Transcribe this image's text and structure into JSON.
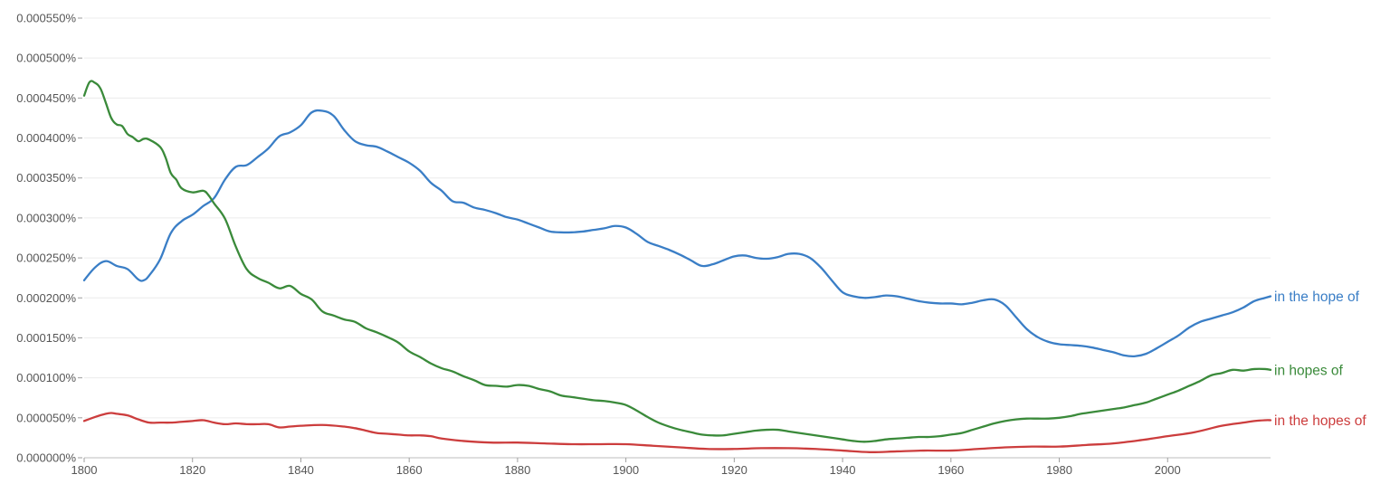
{
  "chart_data": {
    "type": "line",
    "title": "",
    "xlabel": "",
    "ylabel": "",
    "xlim": [
      1800,
      2019
    ],
    "ylim": [
      0,
      0.00055
    ],
    "x_ticks": [
      1800,
      1820,
      1840,
      1860,
      1880,
      1900,
      1920,
      1940,
      1960,
      1980,
      2000
    ],
    "x_tick_labels": [
      "1800",
      "1820",
      "1840",
      "1860",
      "1880",
      "1900",
      "1920",
      "1940",
      "1960",
      "1980",
      "2000"
    ],
    "y_ticks": [
      0,
      5e-05,
      0.0001,
      0.00015,
      0.0002,
      0.00025,
      0.0003,
      0.00035,
      0.0004,
      0.00045,
      0.0005,
      0.00055
    ],
    "y_tick_labels": [
      "0.000000%",
      "0.000050%",
      "0.000100%",
      "0.000150%",
      "0.000200%",
      "0.000250%",
      "0.000300%",
      "0.000350%",
      "0.000400%",
      "0.000450%",
      "0.000500%",
      "0.000550%"
    ],
    "grid": true,
    "legend": "right-end-labels",
    "series": [
      {
        "name": "in the hope of",
        "color": "#3a7ec6",
        "x": [
          1800,
          1802,
          1804,
          1806,
          1808,
          1810,
          1811,
          1812,
          1814,
          1816,
          1818,
          1820,
          1822,
          1824,
          1826,
          1828,
          1830,
          1832,
          1834,
          1836,
          1838,
          1840,
          1842,
          1844,
          1846,
          1848,
          1850,
          1852,
          1854,
          1856,
          1858,
          1860,
          1862,
          1864,
          1866,
          1868,
          1870,
          1872,
          1874,
          1876,
          1878,
          1880,
          1882,
          1884,
          1886,
          1888,
          1890,
          1892,
          1894,
          1896,
          1898,
          1900,
          1902,
          1904,
          1906,
          1908,
          1910,
          1912,
          1914,
          1916,
          1918,
          1920,
          1922,
          1924,
          1926,
          1928,
          1930,
          1932,
          1934,
          1936,
          1938,
          1940,
          1942,
          1944,
          1946,
          1948,
          1950,
          1952,
          1954,
          1956,
          1958,
          1960,
          1962,
          1964,
          1966,
          1968,
          1970,
          1972,
          1974,
          1976,
          1978,
          1980,
          1982,
          1984,
          1986,
          1988,
          1990,
          1992,
          1994,
          1996,
          1998,
          2000,
          2002,
          2004,
          2006,
          2008,
          2010,
          2012,
          2014,
          2016,
          2018,
          2019
        ],
        "y": [
          0.000222,
          0.000238,
          0.000246,
          0.00024,
          0.000236,
          0.000223,
          0.000222,
          0.000228,
          0.000248,
          0.000281,
          0.000296,
          0.000304,
          0.000315,
          0.000325,
          0.000348,
          0.000364,
          0.000366,
          0.000376,
          0.000387,
          0.000402,
          0.000407,
          0.000416,
          0.000432,
          0.000434,
          0.000428,
          0.00041,
          0.000396,
          0.000391,
          0.000389,
          0.000383,
          0.000376,
          0.000369,
          0.000359,
          0.000344,
          0.000334,
          0.000321,
          0.000319,
          0.000313,
          0.00031,
          0.000306,
          0.000301,
          0.000298,
          0.000293,
          0.000288,
          0.000283,
          0.000282,
          0.000282,
          0.000283,
          0.000285,
          0.000287,
          0.00029,
          0.000288,
          0.00028,
          0.00027,
          0.000265,
          0.00026,
          0.000254,
          0.000247,
          0.00024,
          0.000242,
          0.000247,
          0.000252,
          0.000253,
          0.00025,
          0.000249,
          0.000251,
          0.000255,
          0.000255,
          0.00025,
          0.000238,
          0.000222,
          0.000207,
          0.000202,
          0.0002,
          0.000201,
          0.000203,
          0.000202,
          0.000199,
          0.000196,
          0.000194,
          0.000193,
          0.000193,
          0.000192,
          0.000194,
          0.000197,
          0.000198,
          0.000191,
          0.000176,
          0.000161,
          0.000151,
          0.000145,
          0.000142,
          0.000141,
          0.00014,
          0.000138,
          0.000135,
          0.000132,
          0.000128,
          0.000127,
          0.00013,
          0.000137,
          0.000145,
          0.000153,
          0.000163,
          0.00017,
          0.000174,
          0.000178,
          0.000182,
          0.000188,
          0.000196,
          0.0002,
          0.000202
        ]
      },
      {
        "name": "in hopes of",
        "color": "#3a8a3a",
        "x": [
          1800,
          1801,
          1802,
          1803,
          1804,
          1805,
          1806,
          1807,
          1808,
          1809,
          1810,
          1811,
          1812,
          1814,
          1815,
          1816,
          1817,
          1818,
          1820,
          1822,
          1823,
          1824,
          1826,
          1828,
          1830,
          1832,
          1834,
          1836,
          1838,
          1840,
          1842,
          1844,
          1846,
          1848,
          1850,
          1852,
          1854,
          1856,
          1858,
          1860,
          1862,
          1864,
          1866,
          1868,
          1870,
          1872,
          1874,
          1876,
          1878,
          1880,
          1882,
          1884,
          1886,
          1888,
          1890,
          1892,
          1894,
          1896,
          1898,
          1900,
          1902,
          1904,
          1906,
          1908,
          1910,
          1912,
          1914,
          1916,
          1918,
          1920,
          1922,
          1924,
          1926,
          1928,
          1930,
          1932,
          1934,
          1936,
          1938,
          1940,
          1942,
          1944,
          1946,
          1948,
          1950,
          1952,
          1954,
          1956,
          1958,
          1960,
          1962,
          1964,
          1966,
          1968,
          1970,
          1972,
          1974,
          1976,
          1978,
          1980,
          1982,
          1984,
          1986,
          1988,
          1990,
          1992,
          1994,
          1996,
          1998,
          2000,
          2002,
          2004,
          2006,
          2008,
          2010,
          2012,
          2014,
          2016,
          2018,
          2019
        ],
        "y": [
          0.000453,
          0.00047,
          0.000469,
          0.000462,
          0.000444,
          0.000425,
          0.000417,
          0.000415,
          0.000405,
          0.000401,
          0.000396,
          0.000399,
          0.000398,
          0.000389,
          0.000376,
          0.000356,
          0.000348,
          0.000337,
          0.000332,
          0.000334,
          0.000328,
          0.000318,
          0.000299,
          0.000264,
          0.000236,
          0.000225,
          0.000219,
          0.000212,
          0.000215,
          0.000205,
          0.000198,
          0.000183,
          0.000178,
          0.000173,
          0.00017,
          0.000162,
          0.000157,
          0.000151,
          0.000144,
          0.000133,
          0.000126,
          0.000118,
          0.000112,
          0.000108,
          0.000102,
          9.7e-05,
          9.1e-05,
          9e-05,
          8.9e-05,
          9.1e-05,
          9e-05,
          8.6e-05,
          8.3e-05,
          7.8e-05,
          7.6e-05,
          7.4e-05,
          7.2e-05,
          7.1e-05,
          6.9e-05,
          6.6e-05,
          5.9e-05,
          5.1e-05,
          4.4e-05,
          3.9e-05,
          3.5e-05,
          3.2e-05,
          2.9e-05,
          2.8e-05,
          2.8e-05,
          3e-05,
          3.2e-05,
          3.4e-05,
          3.5e-05,
          3.5e-05,
          3.3e-05,
          3.1e-05,
          2.9e-05,
          2.7e-05,
          2.5e-05,
          2.3e-05,
          2.1e-05,
          2e-05,
          2.1e-05,
          2.3e-05,
          2.4e-05,
          2.5e-05,
          2.6e-05,
          2.6e-05,
          2.7e-05,
          2.9e-05,
          3.1e-05,
          3.5e-05,
          3.9e-05,
          4.3e-05,
          4.6e-05,
          4.8e-05,
          4.9e-05,
          4.9e-05,
          4.9e-05,
          5e-05,
          5.2e-05,
          5.5e-05,
          5.7e-05,
          5.9e-05,
          6.1e-05,
          6.3e-05,
          6.6e-05,
          6.9e-05,
          7.4e-05,
          7.9e-05,
          8.4e-05,
          9e-05,
          9.6e-05,
          0.000103,
          0.000106,
          0.00011,
          0.000109,
          0.000111,
          0.000111,
          0.00011
        ]
      },
      {
        "name": "in the hopes of",
        "color": "#cc3d3d",
        "x": [
          1800,
          1802,
          1804,
          1805,
          1806,
          1808,
          1810,
          1812,
          1814,
          1816,
          1818,
          1820,
          1822,
          1824,
          1826,
          1828,
          1830,
          1832,
          1834,
          1836,
          1838,
          1840,
          1844,
          1848,
          1850,
          1852,
          1854,
          1856,
          1858,
          1860,
          1862,
          1864,
          1866,
          1870,
          1875,
          1880,
          1885,
          1890,
          1895,
          1900,
          1905,
          1910,
          1915,
          1920,
          1925,
          1930,
          1935,
          1940,
          1945,
          1950,
          1955,
          1960,
          1965,
          1970,
          1975,
          1980,
          1985,
          1990,
          1995,
          2000,
          2005,
          2010,
          2014,
          2016,
          2018,
          2019
        ],
        "y": [
          4.6e-05,
          5.1e-05,
          5.5e-05,
          5.6e-05,
          5.5e-05,
          5.3e-05,
          4.8e-05,
          4.4e-05,
          4.4e-05,
          4.4e-05,
          4.5e-05,
          4.6e-05,
          4.7e-05,
          4.4e-05,
          4.2e-05,
          4.3e-05,
          4.2e-05,
          4.2e-05,
          4.2e-05,
          3.8e-05,
          3.9e-05,
          4e-05,
          4.1e-05,
          3.9e-05,
          3.7e-05,
          3.4e-05,
          3.1e-05,
          3e-05,
          2.9e-05,
          2.8e-05,
          2.8e-05,
          2.7e-05,
          2.4e-05,
          2.1e-05,
          1.9e-05,
          1.9e-05,
          1.8e-05,
          1.7e-05,
          1.7e-05,
          1.7e-05,
          1.5e-05,
          1.3e-05,
          1.1e-05,
          1.1e-05,
          1.2e-05,
          1.2e-05,
          1.1e-05,
          9e-06,
          7e-06,
          8e-06,
          9e-06,
          9e-06,
          1.1e-05,
          1.3e-05,
          1.4e-05,
          1.4e-05,
          1.6e-05,
          1.8e-05,
          2.2e-05,
          2.7e-05,
          3.2e-05,
          4e-05,
          4.4e-05,
          4.6e-05,
          4.7e-05,
          4.7e-05
        ]
      }
    ]
  }
}
